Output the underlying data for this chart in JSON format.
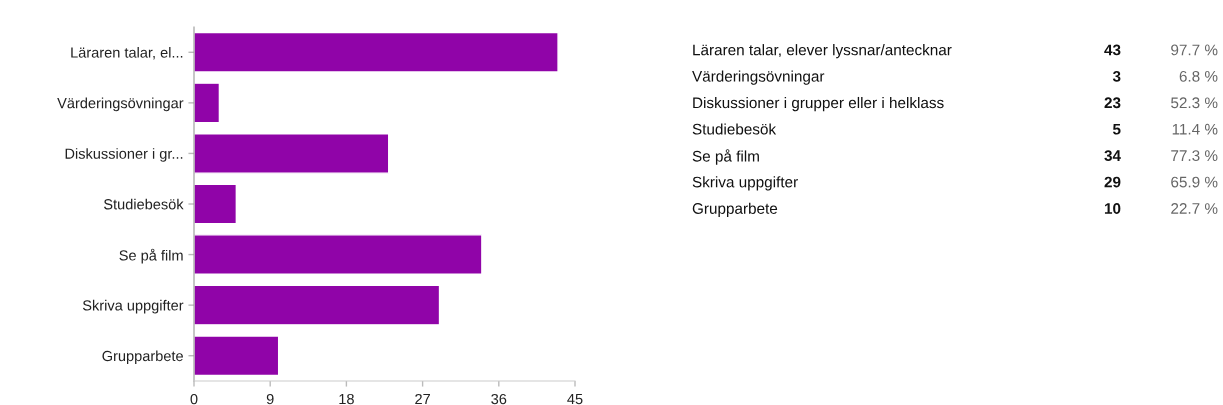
{
  "chart_data": [
    {
      "type": "bar",
      "orientation": "horizontal",
      "categories": [
        "Läraren talar, el...",
        "Värderingsövningar",
        "Diskussioner i gr...",
        "Studiebesök",
        "Se på film",
        "Skriva uppgifter",
        "Grupparbete"
      ],
      "values": [
        43,
        3,
        23,
        5,
        34,
        29,
        10
      ],
      "color": "#9004a8",
      "xlim": [
        0,
        45
      ],
      "xticks": [
        0,
        9,
        18,
        27,
        36,
        45
      ]
    },
    {
      "type": "other",
      "categories": [
        "Läraren talar, elever lyssnar/antecknar",
        "Värderingsövningar",
        "Diskussioner i grupper eller i helklass",
        "Studiebesök",
        "Se på film",
        "Skriva uppgifter",
        "Grupparbete"
      ],
      "data_labels": true,
      "series": [
        {
          "color": "#111111",
          "values": [
            43,
            3,
            23,
            5,
            34,
            29,
            10
          ]
        },
        {
          "color": "#666666",
          "values": [
            97.7,
            6.8,
            52.3,
            11.4,
            77.3,
            65.9,
            22.7
          ],
          "value_labels": [
            "97.7 %",
            "6.8 %",
            "52.3 %",
            "11.4 %",
            "77.3 %",
            "65.9 %",
            "22.7 %"
          ]
        }
      ]
    }
  ]
}
